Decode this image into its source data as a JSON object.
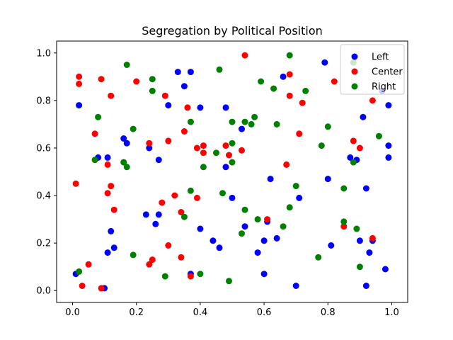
{
  "chart_data": {
    "type": "scatter",
    "title": "Segregation by Political Position",
    "xlabel": "",
    "ylabel": "",
    "xlim": [
      -0.05,
      1.05
    ],
    "ylim": [
      -0.05,
      1.05
    ],
    "xticks": [
      "0.0",
      "0.2",
      "0.4",
      "0.6",
      "0.8",
      "1.0"
    ],
    "yticks": [
      "0.0",
      "0.2",
      "0.4",
      "0.6",
      "0.8",
      "1.0"
    ],
    "grid": false,
    "legend_position": "top-right",
    "series": [
      {
        "name": "Left",
        "color": "#0000ff",
        "points": [
          [
            0.01,
            0.07
          ],
          [
            0.02,
            0.78
          ],
          [
            0.08,
            0.56
          ],
          [
            0.1,
            0.01
          ],
          [
            0.11,
            0.56
          ],
          [
            0.12,
            0.25
          ],
          [
            0.13,
            0.18
          ],
          [
            0.16,
            0.64
          ],
          [
            0.17,
            0.62
          ],
          [
            0.11,
            0.16
          ],
          [
            0.24,
            0.6
          ],
          [
            0.26,
            0.28
          ],
          [
            0.27,
            0.32
          ],
          [
            0.27,
            0.55
          ],
          [
            0.23,
            0.32
          ],
          [
            0.3,
            0.78
          ],
          [
            0.33,
            0.92
          ],
          [
            0.35,
            0.86
          ],
          [
            0.37,
            0.92
          ],
          [
            0.37,
            0.07
          ],
          [
            0.4,
            0.77
          ],
          [
            0.4,
            0.26
          ],
          [
            0.44,
            0.21
          ],
          [
            0.46,
            0.18
          ],
          [
            0.48,
            0.52
          ],
          [
            0.48,
            0.77
          ],
          [
            0.5,
            0.39
          ],
          [
            0.53,
            0.68
          ],
          [
            0.54,
            0.27
          ],
          [
            0.58,
            0.16
          ],
          [
            0.6,
            0.07
          ],
          [
            0.6,
            0.21
          ],
          [
            0.61,
            0.29
          ],
          [
            0.62,
            0.47
          ],
          [
            0.64,
            0.22
          ],
          [
            0.66,
            0.9
          ],
          [
            0.7,
            0.02
          ],
          [
            0.71,
            0.39
          ],
          [
            0.79,
            0.96
          ],
          [
            0.8,
            0.47
          ],
          [
            0.81,
            0.19
          ],
          [
            0.87,
            0.56
          ],
          [
            0.89,
            0.55
          ],
          [
            0.9,
            0.21
          ],
          [
            0.91,
            0.73
          ],
          [
            0.92,
            0.43
          ],
          [
            0.93,
            0.16
          ],
          [
            0.94,
            0.21
          ],
          [
            0.92,
            0.02
          ],
          [
            0.97,
            0.84
          ],
          [
            0.98,
            0.09
          ],
          [
            0.99,
            0.61
          ],
          [
            0.99,
            0.56
          ],
          [
            0.99,
            0.78
          ]
        ]
      },
      {
        "name": "Center",
        "color": "#ff0000",
        "points": [
          [
            0.01,
            0.45
          ],
          [
            0.02,
            0.9
          ],
          [
            0.02,
            0.87
          ],
          [
            0.03,
            0.02
          ],
          [
            0.05,
            0.11
          ],
          [
            0.07,
            0.66
          ],
          [
            0.09,
            0.89
          ],
          [
            0.09,
            0.01
          ],
          [
            0.11,
            0.41
          ],
          [
            0.11,
            0.53
          ],
          [
            0.12,
            0.82
          ],
          [
            0.12,
            0.44
          ],
          [
            0.13,
            0.34
          ],
          [
            0.2,
            0.88
          ],
          [
            0.24,
            0.11
          ],
          [
            0.24,
            0.62
          ],
          [
            0.25,
            0.13
          ],
          [
            0.28,
            0.37
          ],
          [
            0.29,
            0.82
          ],
          [
            0.3,
            0.19
          ],
          [
            0.3,
            0.63
          ],
          [
            0.32,
            0.4
          ],
          [
            0.34,
            0.14
          ],
          [
            0.34,
            0.33
          ],
          [
            0.35,
            0.67
          ],
          [
            0.36,
            0.77
          ],
          [
            0.37,
            0.06
          ],
          [
            0.39,
            0.39
          ],
          [
            0.39,
            0.6
          ],
          [
            0.41,
            0.58
          ],
          [
            0.41,
            0.61
          ],
          [
            0.48,
            0.61
          ],
          [
            0.49,
            0.57
          ],
          [
            0.53,
            0.59
          ],
          [
            0.54,
            0.99
          ],
          [
            0.61,
            0.3
          ],
          [
            0.67,
            0.53
          ],
          [
            0.68,
            0.91
          ],
          [
            0.68,
            0.82
          ],
          [
            0.71,
            0.66
          ],
          [
            0.72,
            0.79
          ],
          [
            0.82,
            0.88
          ],
          [
            0.85,
            0.27
          ],
          [
            0.88,
            0.63
          ],
          [
            0.9,
            0.6
          ],
          [
            0.94,
            0.8
          ],
          [
            0.94,
            0.22
          ]
        ]
      },
      {
        "name": "Right",
        "color": "#008000",
        "points": [
          [
            0.02,
            0.08
          ],
          [
            0.07,
            0.55
          ],
          [
            0.08,
            0.73
          ],
          [
            0.16,
            0.54
          ],
          [
            0.17,
            0.95
          ],
          [
            0.17,
            0.52
          ],
          [
            0.19,
            0.68
          ],
          [
            0.19,
            0.15
          ],
          [
            0.25,
            0.84
          ],
          [
            0.25,
            0.89
          ],
          [
            0.29,
            0.06
          ],
          [
            0.35,
            0.31
          ],
          [
            0.37,
            0.42
          ],
          [
            0.37,
            0.71
          ],
          [
            0.4,
            0.07
          ],
          [
            0.41,
            0.52
          ],
          [
            0.45,
            0.58
          ],
          [
            0.46,
            0.93
          ],
          [
            0.47,
            0.41
          ],
          [
            0.49,
            0.04
          ],
          [
            0.5,
            0.71
          ],
          [
            0.5,
            0.62
          ],
          [
            0.5,
            0.54
          ],
          [
            0.53,
            0.24
          ],
          [
            0.54,
            0.34
          ],
          [
            0.54,
            0.71
          ],
          [
            0.56,
            0.7
          ],
          [
            0.57,
            0.73
          ],
          [
            0.58,
            0.3
          ],
          [
            0.59,
            0.88
          ],
          [
            0.63,
            0.85
          ],
          [
            0.64,
            0.7
          ],
          [
            0.66,
            0.27
          ],
          [
            0.68,
            0.35
          ],
          [
            0.68,
            0.99
          ],
          [
            0.7,
            0.44
          ],
          [
            0.73,
            0.84
          ],
          [
            0.77,
            0.14
          ],
          [
            0.78,
            0.61
          ],
          [
            0.8,
            0.69
          ],
          [
            0.85,
            0.29
          ],
          [
            0.85,
            0.43
          ],
          [
            0.88,
            0.96
          ],
          [
            0.88,
            0.54
          ],
          [
            0.89,
            0.26
          ],
          [
            0.9,
            0.1
          ],
          [
            0.96,
            0.65
          ]
        ]
      }
    ]
  }
}
